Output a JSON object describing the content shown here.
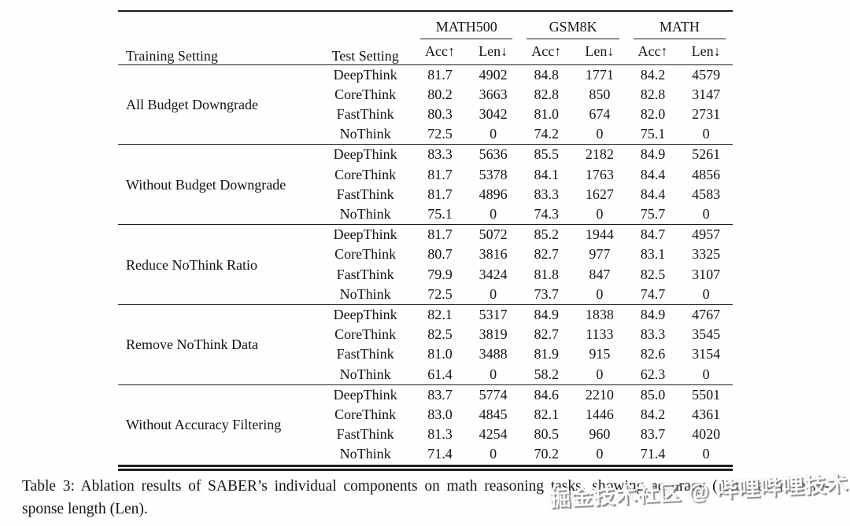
{
  "page": {
    "background": "#ffffff",
    "text_color": "#131313",
    "rule_color": "#1c1c1c"
  },
  "table": {
    "headers": {
      "training": "Training Setting",
      "test": "Test Setting"
    },
    "groups": [
      "MATH500",
      "GSM8K",
      "MATH"
    ],
    "metrics": {
      "acc": "Acc↑",
      "len": "Len↓"
    },
    "blocks": [
      {
        "training": "All Budget Downgrade",
        "rows": [
          {
            "test": "DeepThink",
            "values": [
              "81.7",
              "4902",
              "84.8",
              "1771",
              "84.2",
              "4579"
            ]
          },
          {
            "test": "CoreThink",
            "values": [
              "80.2",
              "3663",
              "82.8",
              "850",
              "82.8",
              "3147"
            ]
          },
          {
            "test": "FastThink",
            "values": [
              "80.3",
              "3042",
              "81.0",
              "674",
              "82.0",
              "2731"
            ]
          },
          {
            "test": "NoThink",
            "values": [
              "72.5",
              "0",
              "74.2",
              "0",
              "75.1",
              "0"
            ]
          }
        ]
      },
      {
        "training": "Without Budget Downgrade",
        "rows": [
          {
            "test": "DeepThink",
            "values": [
              "83.3",
              "5636",
              "85.5",
              "2182",
              "84.9",
              "5261"
            ]
          },
          {
            "test": "CoreThink",
            "values": [
              "81.7",
              "5378",
              "84.1",
              "1763",
              "84.4",
              "4856"
            ]
          },
          {
            "test": "FastThink",
            "values": [
              "81.7",
              "4896",
              "83.3",
              "1627",
              "84.4",
              "4583"
            ]
          },
          {
            "test": "NoThink",
            "values": [
              "75.1",
              "0",
              "74.3",
              "0",
              "75.7",
              "0"
            ]
          }
        ]
      },
      {
        "training": "Reduce NoThink Ratio",
        "rows": [
          {
            "test": "DeepThink",
            "values": [
              "81.7",
              "5072",
              "85.2",
              "1944",
              "84.7",
              "4957"
            ]
          },
          {
            "test": "CoreThink",
            "values": [
              "80.7",
              "3816",
              "82.7",
              "977",
              "83.1",
              "3325"
            ]
          },
          {
            "test": "FastThink",
            "values": [
              "79.9",
              "3424",
              "81.8",
              "847",
              "82.5",
              "3107"
            ]
          },
          {
            "test": "NoThink",
            "values": [
              "72.5",
              "0",
              "73.7",
              "0",
              "74.7",
              "0"
            ]
          }
        ]
      },
      {
        "training": "Remove NoThink Data",
        "rows": [
          {
            "test": "DeepThink",
            "values": [
              "82.1",
              "5317",
              "84.9",
              "1838",
              "84.9",
              "4767"
            ]
          },
          {
            "test": "CoreThink",
            "values": [
              "82.5",
              "3819",
              "82.7",
              "1133",
              "83.3",
              "3545"
            ]
          },
          {
            "test": "FastThink",
            "values": [
              "81.0",
              "3488",
              "81.9",
              "915",
              "82.6",
              "3154"
            ]
          },
          {
            "test": "NoThink",
            "values": [
              "61.4",
              "0",
              "58.2",
              "0",
              "62.3",
              "0"
            ]
          }
        ]
      },
      {
        "training": "Without Accuracy Filtering",
        "rows": [
          {
            "test": "DeepThink",
            "values": [
              "83.7",
              "5774",
              "84.6",
              "2210",
              "85.0",
              "5501"
            ]
          },
          {
            "test": "CoreThink",
            "values": [
              "83.0",
              "4845",
              "82.1",
              "1446",
              "84.2",
              "4361"
            ]
          },
          {
            "test": "FastThink",
            "values": [
              "81.3",
              "4254",
              "80.5",
              "960",
              "83.7",
              "4020"
            ]
          },
          {
            "test": "NoThink",
            "values": [
              "71.4",
              "0",
              "70.2",
              "0",
              "71.4",
              "0"
            ]
          }
        ]
      }
    ]
  },
  "caption": {
    "line1": "Table 3: Ablation results of SABER’s individual components on math reasoning tasks, showing accuracy (Acc), average re-",
    "line2": "sponse length (Len)."
  },
  "watermark": "掘金技术社区 @ 哔哩哔哩技术"
}
